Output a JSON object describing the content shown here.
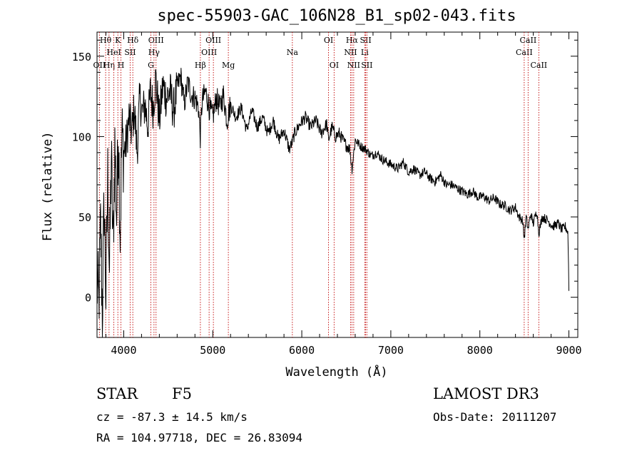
{
  "chart_data": {
    "type": "line",
    "title": "spec-55903-GAC_106N28_B1_sp02-043.fits",
    "xlabel": "Wavelength (Å)",
    "ylabel": "Flux (relative)",
    "xlim": [
      3700,
      9100
    ],
    "ylim": [
      -25,
      165
    ],
    "x_ticks": [
      4000,
      5000,
      6000,
      7000,
      8000,
      9000
    ],
    "y_ticks": [
      0,
      50,
      100,
      150
    ],
    "grid": false,
    "series": [
      {
        "name": "flux",
        "x": [
          3700,
          3720,
          3740,
          3760,
          3780,
          3800,
          3820,
          3840,
          3860,
          3880,
          3900,
          3920,
          3940,
          3960,
          3980,
          4000,
          4030,
          4060,
          4090,
          4120,
          4150,
          4180,
          4210,
          4240,
          4270,
          4300,
          4330,
          4360,
          4400,
          4440,
          4480,
          4520,
          4560,
          4600,
          4640,
          4680,
          4720,
          4760,
          4800,
          4840,
          4860,
          4880,
          4920,
          4960,
          5000,
          5040,
          5080,
          5120,
          5160,
          5200,
          5260,
          5320,
          5380,
          5440,
          5500,
          5560,
          5620,
          5680,
          5740,
          5800,
          5860,
          5890,
          5920,
          5980,
          6040,
          6100,
          6160,
          6220,
          6280,
          6300,
          6340,
          6380,
          6420,
          6480,
          6540,
          6563,
          6600,
          6660,
          6720,
          6780,
          6840,
          6900,
          6960,
          7020,
          7080,
          7140,
          7200,
          7260,
          7320,
          7380,
          7440,
          7500,
          7560,
          7620,
          7680,
          7740,
          7800,
          7860,
          7920,
          7980,
          8040,
          8100,
          8160,
          8220,
          8280,
          8340,
          8400,
          8440,
          8480,
          8498,
          8520,
          8542,
          8570,
          8600,
          8640,
          8662,
          8700,
          8760,
          8820,
          8880,
          8920,
          8960,
          8990,
          9000
        ],
        "y": [
          10,
          -5,
          45,
          -10,
          60,
          0,
          75,
          15,
          88,
          30,
          95,
          50,
          108,
          40,
          100,
          90,
          96,
          112,
          102,
          118,
          90,
          124,
          114,
          120,
          106,
          128,
          118,
          136,
          110,
          132,
          124,
          128,
          116,
          130,
          138,
          120,
          134,
          126,
          124,
          118,
          100,
          122,
          128,
          118,
          112,
          124,
          118,
          126,
          110,
          120,
          112,
          118,
          104,
          116,
          106,
          112,
          102,
          110,
          98,
          104,
          92,
          96,
          102,
          108,
          112,
          106,
          110,
          102,
          108,
          98,
          106,
          100,
          102,
          96,
          92,
          80,
          98,
          94,
          92,
          88,
          90,
          86,
          84,
          82,
          80,
          84,
          78,
          80,
          76,
          78,
          74,
          72,
          76,
          70,
          70,
          68,
          66,
          64,
          66,
          62,
          63,
          60,
          62,
          58,
          57,
          54,
          56,
          50,
          48,
          36,
          50,
          42,
          52,
          46,
          54,
          40,
          50,
          48,
          44,
          46,
          42,
          44,
          40,
          5
        ]
      }
    ],
    "line_ids": [
      {
        "label": "OII",
        "wavelength": 3727,
        "row": 3
      },
      {
        "label": "Hθ",
        "wavelength": 3797,
        "row": 1
      },
      {
        "label": "Hη",
        "wavelength": 3835,
        "row": 3
      },
      {
        "label": "K",
        "wavelength": 3934,
        "row": 1
      },
      {
        "label": "HeI",
        "wavelength": 3889,
        "row": 2
      },
      {
        "label": "SII",
        "wavelength": 4072,
        "row": 2
      },
      {
        "label": "H",
        "wavelength": 3969,
        "row": 3
      },
      {
        "label": "Hδ",
        "wavelength": 4102,
        "row": 1
      },
      {
        "label": "OIII",
        "wavelength": 4363,
        "row": 1
      },
      {
        "label": "Hγ",
        "wavelength": 4340,
        "row": 2
      },
      {
        "label": "G",
        "wavelength": 4305,
        "row": 3
      },
      {
        "label": "Hβ",
        "wavelength": 4861,
        "row": 3
      },
      {
        "label": "OIII",
        "wavelength": 4959,
        "row": 2
      },
      {
        "label": "OIII",
        "wavelength": 5007,
        "row": 1
      },
      {
        "label": "Mg",
        "wavelength": 5175,
        "row": 3
      },
      {
        "label": "Na",
        "wavelength": 5894,
        "row": 2
      },
      {
        "label": "OI",
        "wavelength": 6300,
        "row": 1
      },
      {
        "label": "OI",
        "wavelength": 6363,
        "row": 3
      },
      {
        "label": "Hα",
        "wavelength": 6563,
        "row": 1
      },
      {
        "label": "NII",
        "wavelength": 6548,
        "row": 2
      },
      {
        "label": "NII",
        "wavelength": 6583,
        "row": 3
      },
      {
        "label": "SII",
        "wavelength": 6717,
        "row": 1
      },
      {
        "label": "Li",
        "wavelength": 6707,
        "row": 2
      },
      {
        "label": "SII",
        "wavelength": 6731,
        "row": 3
      },
      {
        "label": "CaII",
        "wavelength": 8498,
        "row": 2
      },
      {
        "label": "CaII",
        "wavelength": 8542,
        "row": 1
      },
      {
        "label": "CaII",
        "wavelength": 8662,
        "row": 3
      }
    ]
  },
  "info": {
    "class": "STAR",
    "subclass": "F5",
    "survey": "LAMOST DR3",
    "cz": "cz = -87.3 ± 14.5 km/s",
    "obs_date": "Obs-Date: 20111207",
    "coords": "RA = 104.97718, DEC =  26.83094"
  }
}
